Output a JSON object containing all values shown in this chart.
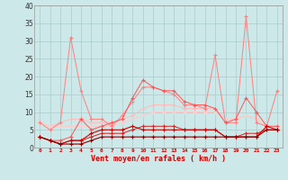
{
  "xlabel": "Vent moyen/en rafales ( km/h )",
  "x": [
    0,
    1,
    2,
    3,
    4,
    5,
    6,
    7,
    8,
    9,
    10,
    11,
    12,
    13,
    14,
    15,
    16,
    17,
    18,
    19,
    20,
    21,
    22,
    23
  ],
  "line1": [
    7,
    5,
    7,
    31,
    16,
    8,
    8,
    6,
    9,
    13,
    17,
    17,
    16,
    15,
    12,
    12,
    11,
    26,
    7,
    7,
    37,
    7,
    6,
    16
  ],
  "line2": [
    3,
    2,
    2,
    3,
    8,
    5,
    6,
    7,
    8,
    14,
    19,
    17,
    16,
    16,
    13,
    12,
    12,
    11,
    7,
    8,
    14,
    10,
    6,
    6
  ],
  "line3": [
    7,
    6,
    7,
    8,
    8,
    7,
    7,
    7,
    8,
    9,
    11,
    12,
    12,
    12,
    11,
    11,
    11,
    11,
    8,
    8,
    9,
    8,
    6,
    6
  ],
  "line4": [
    3,
    2,
    1,
    2,
    2,
    4,
    5,
    5,
    5,
    6,
    5,
    5,
    5,
    5,
    5,
    5,
    5,
    5,
    3,
    3,
    3,
    3,
    6,
    5
  ],
  "line5": [
    3,
    2,
    1,
    1,
    1,
    2,
    3,
    3,
    3,
    3,
    3,
    3,
    3,
    3,
    3,
    3,
    3,
    3,
    3,
    3,
    3,
    3,
    5,
    5
  ],
  "line6": [
    7,
    6,
    6,
    6,
    6,
    6,
    6,
    6,
    7,
    8,
    9,
    10,
    10,
    10,
    10,
    10,
    10,
    10,
    8,
    8,
    9,
    8,
    6,
    6
  ],
  "line7": [
    3,
    2,
    1,
    2,
    2,
    3,
    4,
    4,
    4,
    5,
    6,
    6,
    6,
    6,
    5,
    5,
    5,
    5,
    3,
    3,
    4,
    4,
    5,
    5
  ],
  "bg_color": "#cce8e8",
  "grid_color": "#aacccc",
  "line1_color": "#ff8080",
  "line2_color": "#ff5555",
  "line3_color": "#ffbbbb",
  "line4_color": "#cc0000",
  "line5_color": "#880000",
  "line6_color": "#ffcccc",
  "line7_color": "#dd2222",
  "ylim": [
    0,
    40
  ],
  "yticks": [
    0,
    5,
    10,
    15,
    20,
    25,
    30,
    35,
    40
  ],
  "xlim_min": -0.5,
  "xlim_max": 23.5,
  "xlabel_color": "#cc0000",
  "tick_label_color": "#cc0000"
}
